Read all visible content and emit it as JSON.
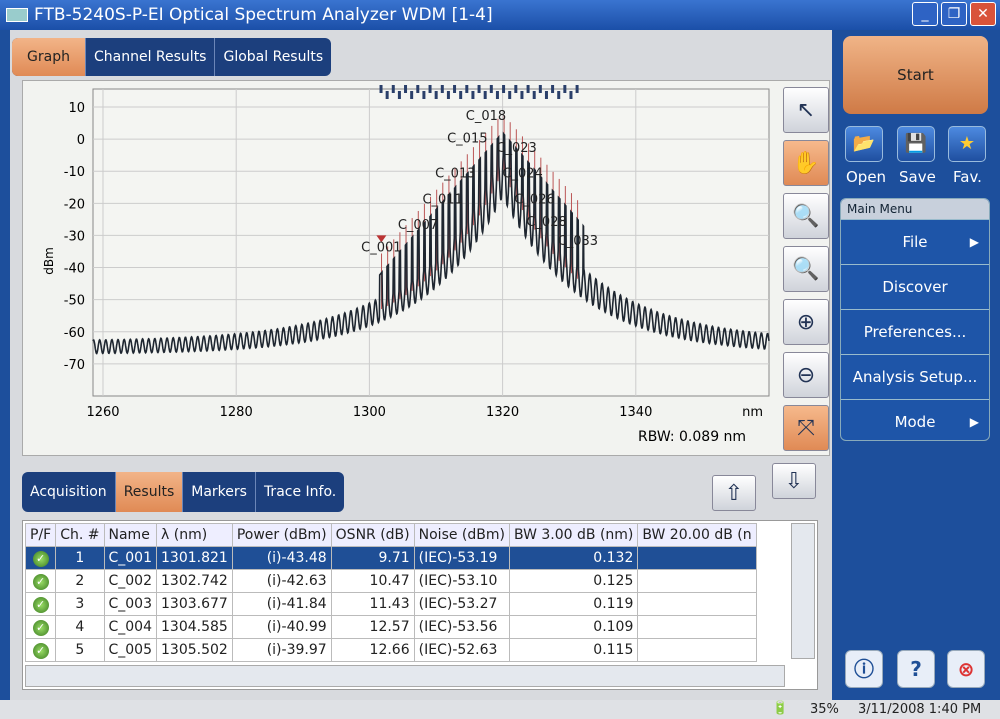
{
  "window": {
    "title": "FTB-5240S-P-EI Optical Spectrum Analyzer WDM [1-4]",
    "buttons": [
      "_",
      "❐",
      "✕"
    ]
  },
  "top_tabs": [
    "Graph",
    "Channel Results",
    "Global Results"
  ],
  "chart_data": {
    "type": "line",
    "xlabel": "nm",
    "ylabel": "dBm",
    "xlim": [
      1258.5,
      1360
    ],
    "ylim": [
      -80,
      15.6
    ],
    "x_ticks": [
      1260,
      1280,
      1300,
      1320,
      1340
    ],
    "y_ticks": [
      10,
      0,
      -10,
      -20,
      -30,
      -40,
      -50,
      -60,
      -70
    ],
    "grid": true,
    "channel_labels": [
      {
        "name": "C_001",
        "x": 1301.8,
        "y": -35
      },
      {
        "name": "C_007",
        "x": 1307.3,
        "y": -28
      },
      {
        "name": "C_011",
        "x": 1311,
        "y": -20
      },
      {
        "name": "C_013",
        "x": 1312.9,
        "y": -12
      },
      {
        "name": "C_015",
        "x": 1314.7,
        "y": -1
      },
      {
        "name": "C_018",
        "x": 1317.5,
        "y": 6
      },
      {
        "name": "C_023",
        "x": 1322.1,
        "y": -4
      },
      {
        "name": "C_024",
        "x": 1323,
        "y": -12
      },
      {
        "name": "C_026",
        "x": 1324.8,
        "y": -20
      },
      {
        "name": "C_028",
        "x": 1326.6,
        "y": -27
      },
      {
        "name": "C_033",
        "x": 1331.3,
        "y": -33
      }
    ],
    "channel_count": 33,
    "first_channel_nm": 1301.821,
    "channel_spacing_nm": 0.92
  },
  "rbw": "RBW: 0.089 nm",
  "bottom_tabs": [
    "Acquisition",
    "Results",
    "Markers",
    "Trace Info."
  ],
  "table": {
    "headers": [
      "P/F",
      "Ch. #",
      "Name",
      "λ (nm)",
      "Power (dBm)",
      "OSNR (dB)",
      "Noise (dBm)",
      "BW 3.00 dB (nm)",
      "BW 20.00 dB (n"
    ],
    "rows": [
      [
        "✓",
        "1",
        "C_001",
        "1301.821",
        "(i)-43.48",
        "9.71",
        "(IEC)-53.19",
        "0.132",
        ""
      ],
      [
        "✓",
        "2",
        "C_002",
        "1302.742",
        "(i)-42.63",
        "10.47",
        "(IEC)-53.10",
        "0.125",
        ""
      ],
      [
        "✓",
        "3",
        "C_003",
        "1303.677",
        "(i)-41.84",
        "11.43",
        "(IEC)-53.27",
        "0.119",
        ""
      ],
      [
        "✓",
        "4",
        "C_004",
        "1304.585",
        "(i)-40.99",
        "12.57",
        "(IEC)-53.56",
        "0.109",
        ""
      ],
      [
        "✓",
        "5",
        "C_005",
        "1305.502",
        "(i)-39.97",
        "12.66",
        "(IEC)-52.63",
        "0.115",
        ""
      ]
    ]
  },
  "right": {
    "start": "Start",
    "open": "Open",
    "save": "Save",
    "fav": "Fav.",
    "menu_title": "Main Menu",
    "menu": [
      "File",
      "Discover",
      "Preferences...",
      "Analysis Setup...",
      "Mode"
    ]
  },
  "status": {
    "battery": "35%",
    "datetime": "3/11/2008 1:40 PM"
  }
}
